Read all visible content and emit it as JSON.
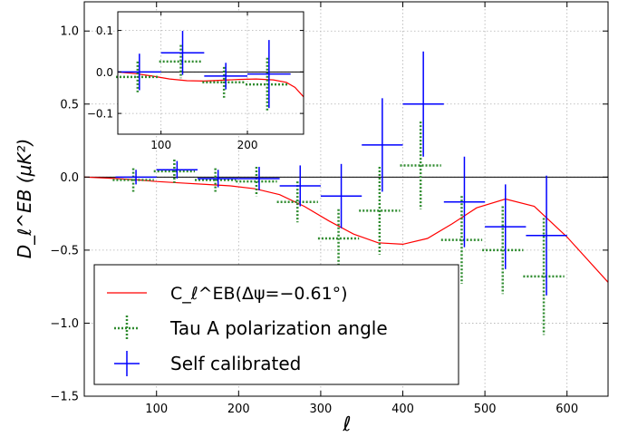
{
  "chart_data": [
    {
      "type": "errorbar",
      "xlabel": "ℓ",
      "ylabel": "D_ℓ^EB (μK²)",
      "xlim": [
        12,
        650
      ],
      "ylim": [
        -1.5,
        1.2
      ],
      "xticks": [
        100,
        200,
        300,
        400,
        500,
        600
      ],
      "yticks": [
        -1.5,
        -1.0,
        -0.5,
        0.0,
        0.5,
        1.0
      ],
      "xtick_labels": [
        "100",
        "200",
        "300",
        "400",
        "500",
        "600"
      ],
      "ytick_labels": [
        "−1.5",
        "−1.0",
        "−0.5",
        "0.0",
        "0.5",
        "1.0"
      ],
      "grid": true,
      "zero_line": true,
      "legend_position": "lower-left",
      "model": {
        "name": "C_ℓ^EB(Δψ=−0.61°)",
        "color": "#ff0000",
        "x": [
          12,
          50,
          80,
          100,
          130,
          160,
          190,
          220,
          250,
          280,
          310,
          340,
          370,
          400,
          430,
          460,
          490,
          525,
          560,
          600,
          650
        ],
        "y": [
          0.0,
          -0.01,
          -0.02,
          -0.03,
          -0.04,
          -0.05,
          -0.06,
          -0.08,
          -0.12,
          -0.2,
          -0.3,
          -0.39,
          -0.45,
          -0.46,
          -0.42,
          -0.32,
          -0.21,
          -0.15,
          -0.2,
          -0.41,
          -0.72
        ]
      },
      "series": [
        {
          "name": "Tau A polarization angle",
          "color": "#2e8b2e",
          "style": "dotted",
          "points": [
            {
              "x": 75,
              "y": -0.02,
              "xerr": 25,
              "yerr": 0.08
            },
            {
              "x": 125,
              "y": 0.04,
              "xerr": 25,
              "yerr": 0.08
            },
            {
              "x": 175,
              "y": -0.02,
              "xerr": 25,
              "yerr": 0.08
            },
            {
              "x": 225,
              "y": -0.03,
              "xerr": 25,
              "yerr": 0.1
            },
            {
              "x": 275,
              "y": -0.17,
              "xerr": 25,
              "yerr": 0.14
            },
            {
              "x": 325,
              "y": -0.42,
              "xerr": 25,
              "yerr": 0.2
            },
            {
              "x": 375,
              "y": -0.23,
              "xerr": 25,
              "yerr": 0.3
            },
            {
              "x": 425,
              "y": 0.08,
              "xerr": 25,
              "yerr": 0.3
            },
            {
              "x": 475,
              "y": -0.43,
              "xerr": 25,
              "yerr": 0.3
            },
            {
              "x": 525,
              "y": -0.5,
              "xerr": 25,
              "yerr": 0.3
            },
            {
              "x": 575,
              "y": -0.68,
              "xerr": 25,
              "yerr": 0.4
            }
          ]
        },
        {
          "name": "Self calibrated",
          "color": "#0000ff",
          "style": "solid",
          "points": [
            {
              "x": 75,
              "y": 0.0,
              "xerr": 25,
              "yerr": 0.05
            },
            {
              "x": 125,
              "y": 0.05,
              "xerr": 25,
              "yerr": 0.06
            },
            {
              "x": 175,
              "y": -0.01,
              "xerr": 25,
              "yerr": 0.06
            },
            {
              "x": 225,
              "y": -0.01,
              "xerr": 25,
              "yerr": 0.08
            },
            {
              "x": 275,
              "y": -0.06,
              "xerr": 25,
              "yerr": 0.14
            },
            {
              "x": 325,
              "y": -0.13,
              "xerr": 25,
              "yerr": 0.22
            },
            {
              "x": 375,
              "y": 0.22,
              "xerr": 25,
              "yerr": 0.32
            },
            {
              "x": 425,
              "y": 0.5,
              "xerr": 25,
              "yerr": 0.36
            },
            {
              "x": 475,
              "y": -0.17,
              "xerr": 25,
              "yerr": 0.31
            },
            {
              "x": 525,
              "y": -0.34,
              "xerr": 25,
              "yerr": 0.29
            },
            {
              "x": 575,
              "y": -0.4,
              "xerr": 25,
              "yerr": 0.41
            }
          ]
        }
      ]
    },
    {
      "type": "errorbar",
      "inset": true,
      "xlim": [
        50,
        265
      ],
      "ylim": [
        -0.15,
        0.145
      ],
      "xticks": [
        100,
        200
      ],
      "yticks": [
        -0.1,
        0.0,
        0.1
      ],
      "xtick_labels": [
        "100",
        "200"
      ],
      "ytick_labels": [
        "−0.1",
        "0.0",
        "0.1"
      ],
      "grid": true,
      "zero_line": true,
      "model": {
        "color": "#ff0000",
        "x": [
          50,
          70,
          90,
          110,
          130,
          150,
          170,
          190,
          210,
          230,
          245,
          255,
          265
        ],
        "y": [
          0.0,
          -0.004,
          -0.01,
          -0.017,
          -0.021,
          -0.022,
          -0.02,
          -0.018,
          -0.017,
          -0.019,
          -0.025,
          -0.037,
          -0.06
        ]
      },
      "series": [
        {
          "name": "Tau A polarization angle",
          "color": "#2e8b2e",
          "style": "dotted",
          "points": [
            {
              "x": 75,
              "y": -0.012,
              "xerr": 25,
              "yerr": 0.037
            },
            {
              "x": 125,
              "y": 0.025,
              "xerr": 25,
              "yerr": 0.04
            },
            {
              "x": 175,
              "y": -0.025,
              "xerr": 25,
              "yerr": 0.037
            },
            {
              "x": 225,
              "y": -0.03,
              "xerr": 25,
              "yerr": 0.064
            }
          ]
        },
        {
          "name": "Self calibrated",
          "color": "#0000ff",
          "style": "solid",
          "points": [
            {
              "x": 75,
              "y": 0.0,
              "xerr": 25,
              "yerr": 0.044
            },
            {
              "x": 125,
              "y": 0.046,
              "xerr": 25,
              "yerr": 0.053
            },
            {
              "x": 175,
              "y": -0.01,
              "xerr": 25,
              "yerr": 0.032
            },
            {
              "x": 225,
              "y": -0.005,
              "xerr": 25,
              "yerr": 0.082
            }
          ]
        }
      ]
    }
  ]
}
